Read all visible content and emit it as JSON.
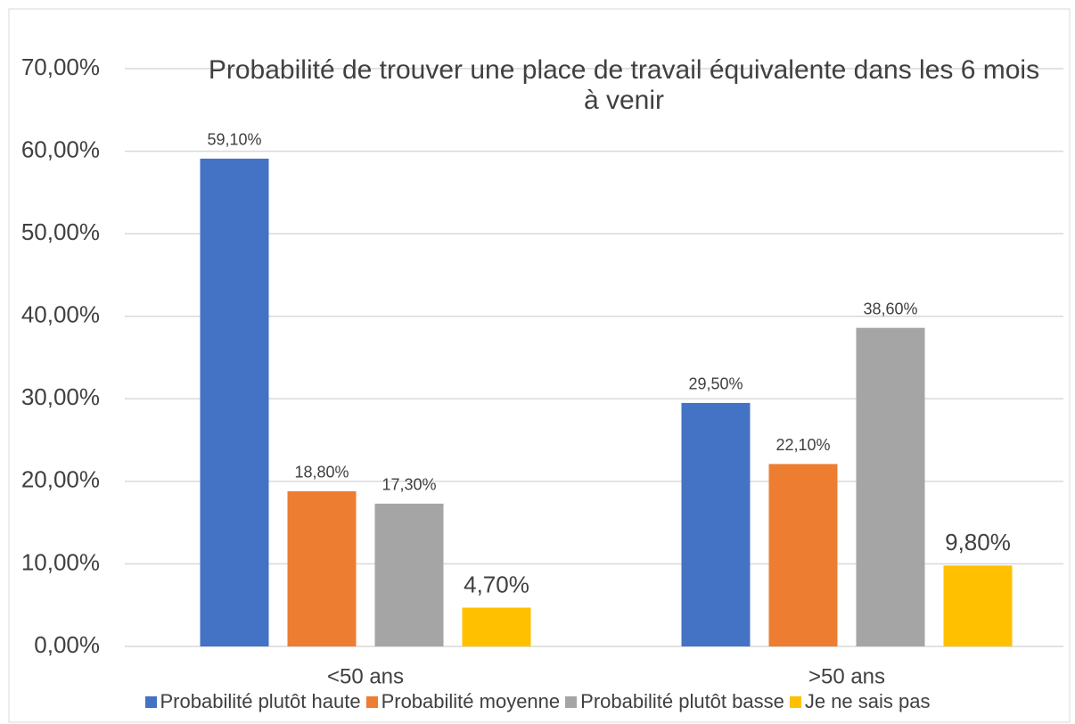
{
  "chart_data": {
    "type": "bar",
    "title": "Probabilité de trouver une place de travail équivalente dans les 6 mois à venir",
    "categories": [
      "<50 ans",
      ">50 ans"
    ],
    "series": [
      {
        "name": "Probabilité plutôt haute",
        "color": "#4472c4",
        "values": [
          59.1,
          29.5
        ],
        "value_labels": [
          "59,10%",
          "29,50%"
        ]
      },
      {
        "name": "Probabilité moyenne",
        "color": "#ed7d31",
        "values": [
          18.8,
          22.1
        ],
        "value_labels": [
          "18,80%",
          "22,10%"
        ]
      },
      {
        "name": "Probabilité plutôt basse",
        "color": "#a5a5a5",
        "values": [
          17.3,
          38.6
        ],
        "value_labels": [
          "17,30%",
          "38,60%"
        ]
      },
      {
        "name": "Je ne sais pas",
        "color": "#ffc000",
        "values": [
          4.7,
          9.8
        ],
        "value_labels": [
          "4,70%",
          "9,80%"
        ]
      }
    ],
    "ylim": [
      0,
      70
    ],
    "yticks": [
      {
        "value": 0,
        "label": "0,00%"
      },
      {
        "value": 10,
        "label": "10,00%"
      },
      {
        "value": 20,
        "label": "20,00%"
      },
      {
        "value": 30,
        "label": "30,00%"
      },
      {
        "value": 40,
        "label": "40,00%"
      },
      {
        "value": 50,
        "label": "50,00%"
      },
      {
        "value": 60,
        "label": "60,00%"
      },
      {
        "value": 70,
        "label": "70,00%"
      }
    ],
    "grid": true,
    "legend": "bottom"
  }
}
